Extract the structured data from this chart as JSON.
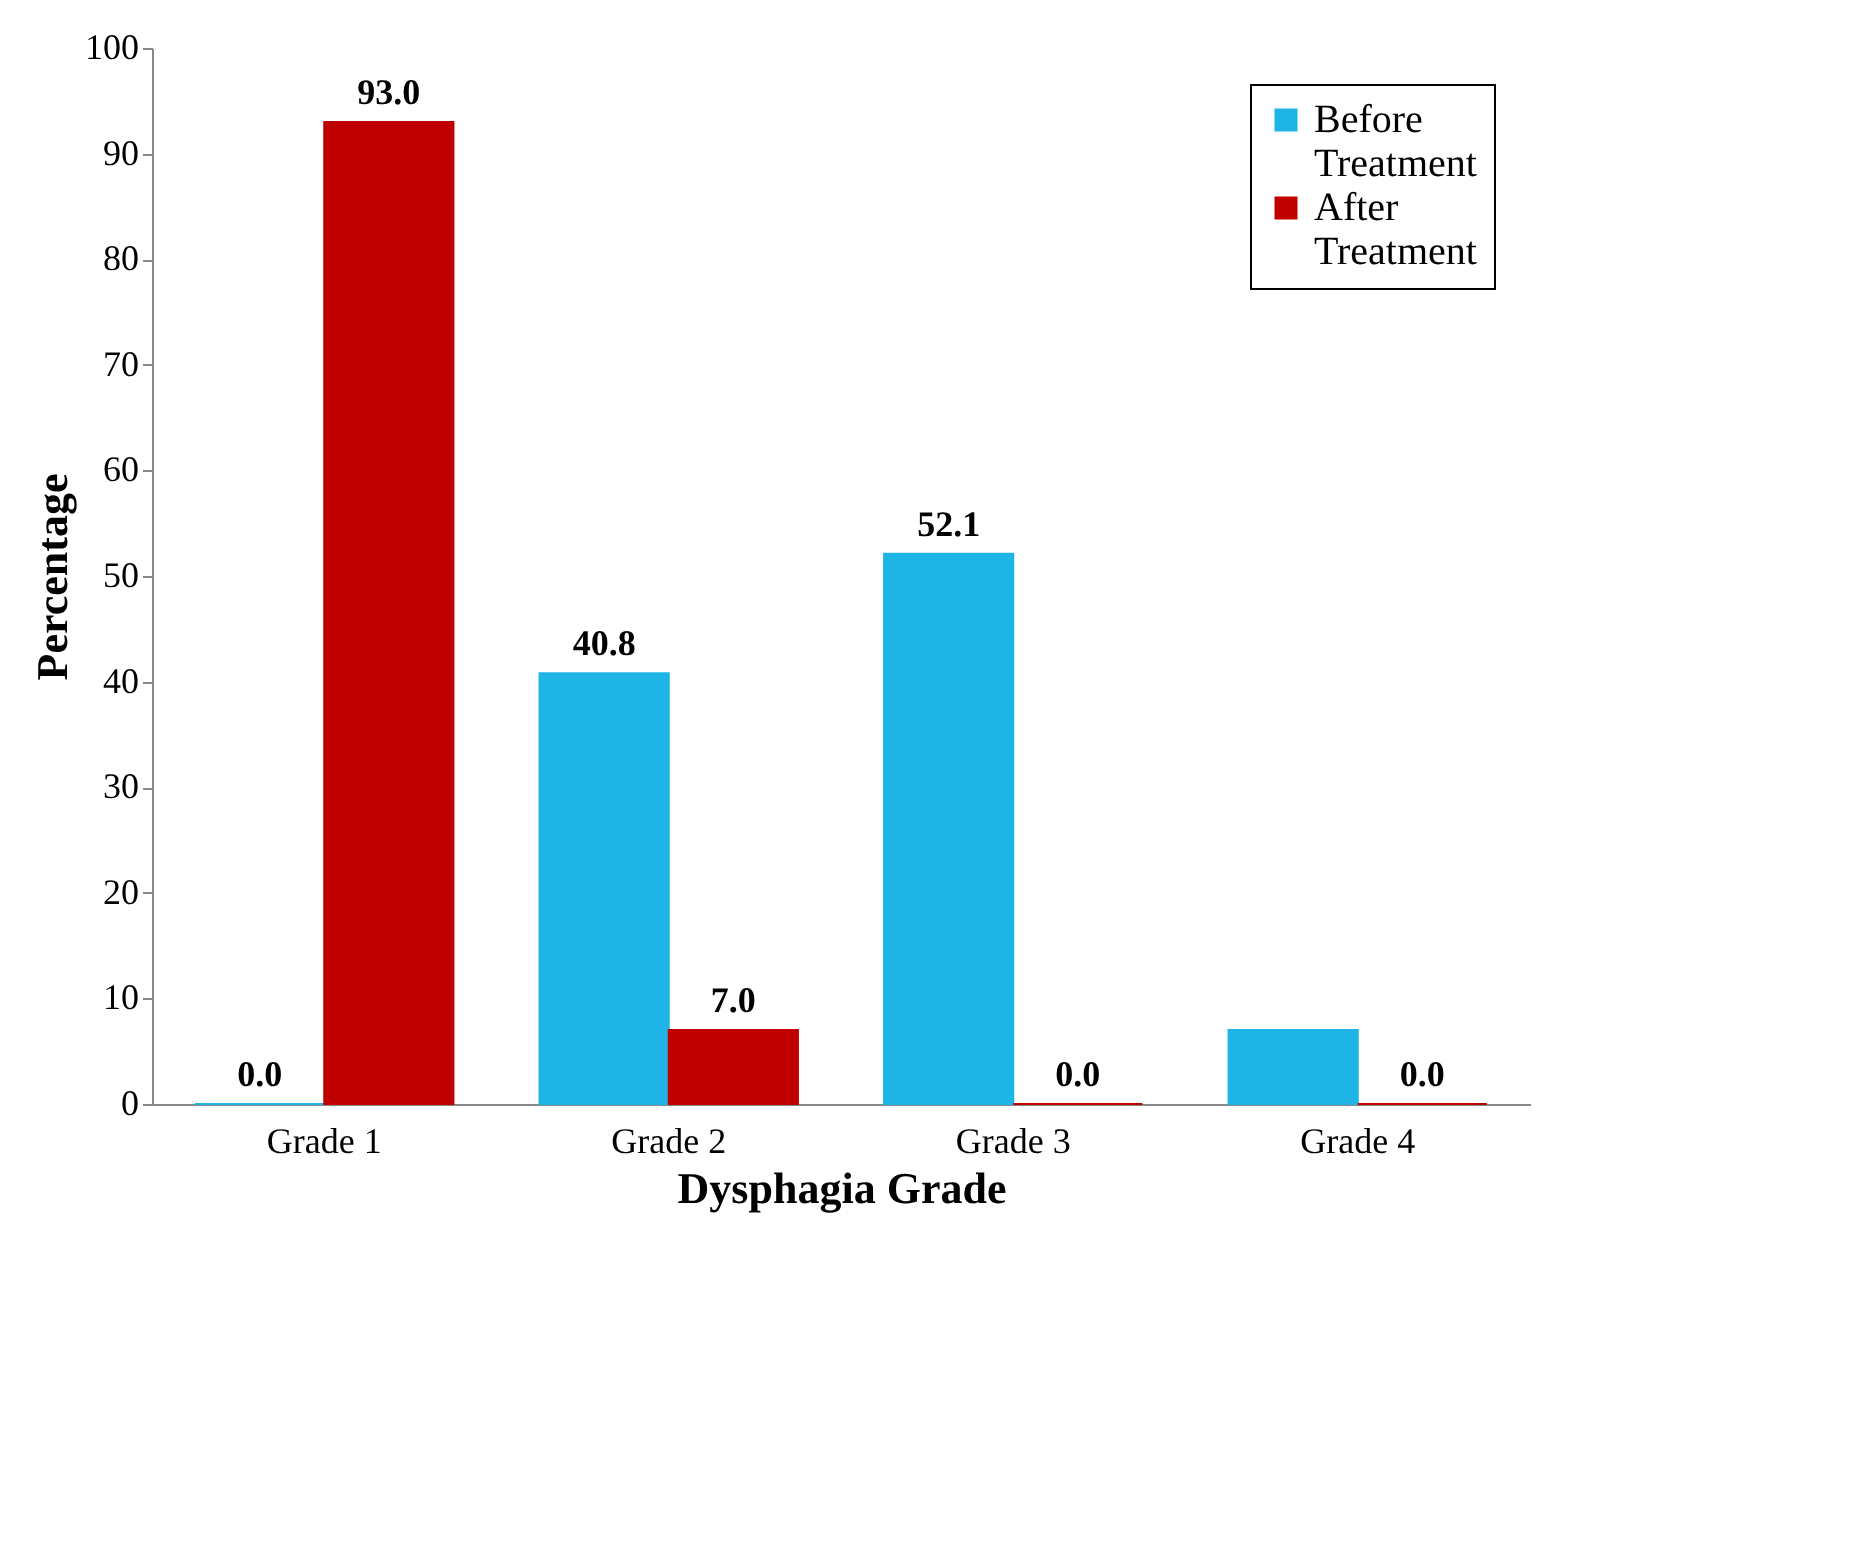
{
  "chart_data": {
    "type": "bar",
    "xlabel": "Dysphagia Grade",
    "ylabel": "Percentage",
    "categories": [
      "Grade 1",
      "Grade 2",
      "Grade 3",
      "Grade 4"
    ],
    "series": [
      {
        "name": "Before Treatment",
        "color": "#1eb4e6",
        "values": [
          0.0,
          40.8,
          52.1,
          7.0
        ],
        "value_labels": [
          "0.0",
          "40.8",
          "52.1",
          null
        ]
      },
      {
        "name": "After Treatment",
        "color": "#c00000",
        "values": [
          93.0,
          7.0,
          0.0,
          0.0
        ],
        "value_labels": [
          "93.0",
          "7.0",
          "0.0",
          "0.0"
        ]
      }
    ],
    "ylim": [
      0,
      100
    ],
    "yticks": [
      0,
      10,
      20,
      30,
      40,
      50,
      60,
      70,
      80,
      90,
      100
    ],
    "grid": false,
    "legend": "top right"
  }
}
